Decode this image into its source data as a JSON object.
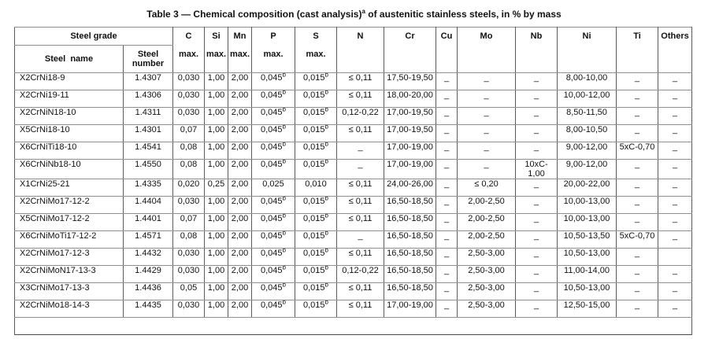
{
  "title": "Table 3 — Chemical composition (cast analysis)^a of austenitic stainless steels, in % by mass",
  "table": {
    "header": {
      "steel_grade": "Steel grade",
      "steel_name": "Steel  name",
      "steel_number": "Steel\nnumber",
      "elements": [
        {
          "symbol": "C",
          "max": "max."
        },
        {
          "symbol": "Si",
          "max": "max."
        },
        {
          "symbol": "Mn",
          "max": "max."
        },
        {
          "symbol": "P",
          "max": "max."
        },
        {
          "symbol": "S",
          "max": "max."
        },
        {
          "symbol": "N",
          "max": ""
        },
        {
          "symbol": "Cr",
          "max": ""
        },
        {
          "symbol": "Cu",
          "max": ""
        },
        {
          "symbol": "Mo",
          "max": ""
        },
        {
          "symbol": "Nb",
          "max": ""
        },
        {
          "symbol": "Ni",
          "max": ""
        },
        {
          "symbol": "Ti",
          "max": ""
        },
        {
          "symbol": "Others",
          "max": ""
        }
      ]
    },
    "column_keys": [
      "name",
      "number",
      "c",
      "si",
      "mn",
      "p",
      "s",
      "n",
      "cr",
      "cu",
      "mo",
      "nb",
      "ni",
      "ti",
      "others"
    ],
    "rows": [
      {
        "name": "X2CrNi18-9",
        "number": "1.4307",
        "c": "0,030",
        "si": "1,00",
        "mn": "2,00",
        "p": "0,045^b",
        "s": "0,015^b",
        "n": "≤ 0,11",
        "cr": "17,50-19,50",
        "cu": "_",
        "mo": "_",
        "nb": "_",
        "ni": "8,00-10,00",
        "ti": "_",
        "others": "_"
      },
      {
        "name": "X2CrNi19-11",
        "number": "1.4306",
        "c": "0,030",
        "si": "1,00",
        "mn": "2,00",
        "p": "0,045^b",
        "s": "0,015^b",
        "n": "≤ 0,11",
        "cr": "18,00-20,00",
        "cu": "_",
        "mo": "_",
        "nb": "_",
        "ni": "10,00-12,00",
        "ti": "_",
        "others": "_"
      },
      {
        "name": "X2CrNiN18-10",
        "number": "1.4311",
        "c": "0,030",
        "si": "1,00",
        "mn": "2,00",
        "p": "0,045^b",
        "s": "0,015^b",
        "n": "0,12-0,22",
        "cr": "17,00-19,50",
        "cu": "_",
        "mo": "_",
        "nb": "_",
        "ni": "8,50-11,50",
        "ti": "_",
        "others": "_"
      },
      {
        "name": "X5CrNi18-10",
        "number": "1.4301",
        "c": "0,07",
        "si": "1,00",
        "mn": "2,00",
        "p": "0,045^b",
        "s": "0,015^b",
        "n": "≤ 0,11",
        "cr": "17,00-19,50",
        "cu": "_",
        "mo": "_",
        "nb": "_",
        "ni": "8,00-10,50",
        "ti": "_",
        "others": "_"
      },
      {
        "name": "X6CrNiTi18-10",
        "number": "1.4541",
        "c": "0,08",
        "si": "1,00",
        "mn": "2,00",
        "p": "0,045^b",
        "s": "0,015^b",
        "n": "_",
        "cr": "17,00-19,00",
        "cu": "_",
        "mo": "_",
        "nb": "_",
        "ni": "9,00-12,00",
        "ti": "5xC-0,70",
        "others": "_"
      },
      {
        "name": "X6CrNiNb18-10",
        "number": "1.4550",
        "c": "0,08",
        "si": "1,00",
        "mn": "2,00",
        "p": "0,045^b",
        "s": "0,015^b",
        "n": "_",
        "cr": "17,00-19,00",
        "cu": "_",
        "mo": "_",
        "nb": "10xC-\n1,00",
        "ni": "9,00-12,00",
        "ti": "_",
        "others": "_"
      },
      {
        "name": "X1CrNi25-21",
        "number": "1.4335",
        "c": "0,020",
        "si": "0,25",
        "mn": "2,00",
        "p": "0,025",
        "s": "0,010",
        "n": "≤ 0,11",
        "cr": "24,00-26,00",
        "cu": "_",
        "mo": "≤ 0,20",
        "nb": "_",
        "ni": "20,00-22,00",
        "ti": "_",
        "others": "_"
      },
      {
        "name": "X2CrNiMo17-12-2",
        "number": "1.4404",
        "c": "0,030",
        "si": "1,00",
        "mn": "2,00",
        "p": "0,045^b",
        "s": "0,015^b",
        "n": "≤ 0,11",
        "cr": "16,50-18,50",
        "cu": "_",
        "mo": "2,00-2,50",
        "nb": "_",
        "ni": "10,00-13,00",
        "ti": "_",
        "others": "_"
      },
      {
        "name": "X5CrNiMo17-12-2",
        "number": "1.4401",
        "c": "0,07",
        "si": "1,00",
        "mn": "2,00",
        "p": "0,045^b",
        "s": "0,015^b",
        "n": "≤ 0,11",
        "cr": "16,50-18,50",
        "cu": "_",
        "mo": "2,00-2,50",
        "nb": "_",
        "ni": "10,00-13,00",
        "ti": "_",
        "others": "_"
      },
      {
        "name": "X6CrNiMoTi17-12-2",
        "number": "1.4571",
        "c": "0,08",
        "si": "1,00",
        "mn": "2,00",
        "p": "0,045^b",
        "s": "0,015^b",
        "n": "_",
        "cr": "16,50-18,50",
        "cu": "_",
        "mo": "2,00-2,50",
        "nb": "_",
        "ni": "10,50-13,50",
        "ti": "5xC-0,70",
        "others": "_"
      },
      {
        "name": "X2CrNiMo17-12-3",
        "number": "1.4432",
        "c": "0,030",
        "si": "1,00",
        "mn": "2,00",
        "p": "0,045^b",
        "s": "0,015^b",
        "n": "≤ 0,11",
        "cr": "16,50-18,50",
        "cu": "_",
        "mo": "2,50-3,00",
        "nb": "_",
        "ni": "10,50-13,00",
        "ti": "_",
        "others": ""
      },
      {
        "name": "X2CrNiMoN17-13-3",
        "number": "1.4429",
        "c": "0,030",
        "si": "1,00",
        "mn": "2,00",
        "p": "0,045^b",
        "s": "0,015^b",
        "n": "0,12-0,22",
        "cr": "16,50-18,50",
        "cu": "_",
        "mo": "2,50-3,00",
        "nb": "_",
        "ni": "11,00-14,00",
        "ti": "_",
        "others": "_"
      },
      {
        "name": "X3CrNiMo17-13-3",
        "number": "1.4436",
        "c": "0,05",
        "si": "1,00",
        "mn": "2,00",
        "p": "0,045^b",
        "s": "0,015^b",
        "n": "≤ 0,11",
        "cr": "16,50-18,50",
        "cu": "_",
        "mo": "2,50-3,00",
        "nb": "_",
        "ni": "10,50-13,00",
        "ti": "_",
        "others": "_"
      },
      {
        "name": "X2CrNiMo18-14-3",
        "number": "1.4435",
        "c": "0,030",
        "si": "1,00",
        "mn": "2,00",
        "p": "0,045^b",
        "s": "0,015^b",
        "n": "≤ 0,11",
        "cr": "17,00-19,00",
        "cu": "_",
        "mo": "2,50-3,00",
        "nb": "_",
        "ni": "12,50-15,00",
        "ti": "_",
        "others": "_"
      }
    ]
  },
  "colors": {
    "border_horizontal": "#8f8f8f",
    "border_vertical": "#5a5a5a",
    "text": "#111111",
    "background": "#ffffff"
  }
}
